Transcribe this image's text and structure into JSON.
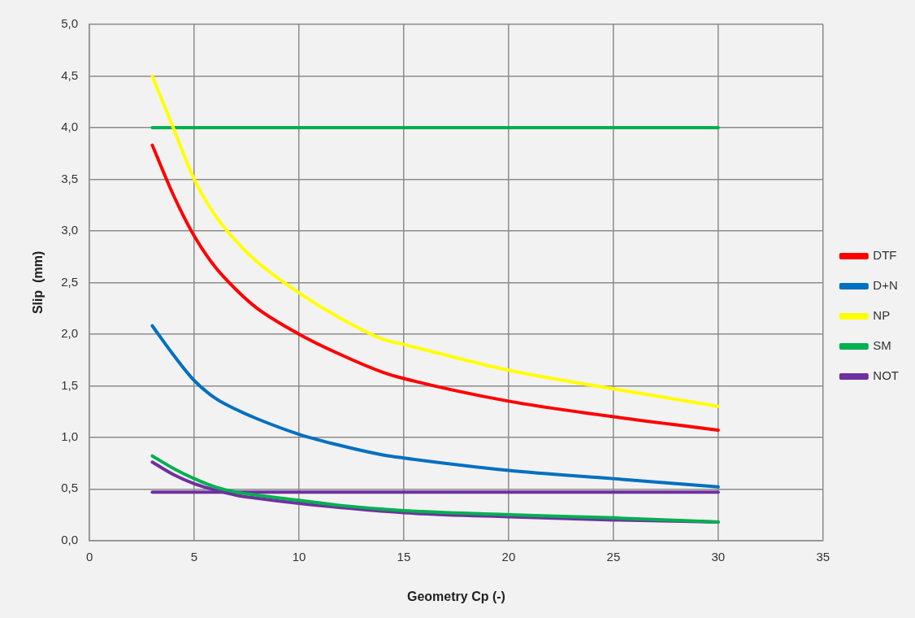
{
  "chart_data": {
    "type": "line",
    "xlabel": "Geometry Cp (-)",
    "ylabel": "Slip  (mm)",
    "xlim": [
      0,
      35
    ],
    "xticks": [
      0,
      5,
      10,
      15,
      20,
      25,
      30,
      35
    ],
    "ylim": [
      0,
      5
    ],
    "yticks": [
      {
        "value": 0,
        "label": "0,0"
      },
      {
        "value": 0.5,
        "label": "0,5"
      },
      {
        "value": 1,
        "label": "1,0"
      },
      {
        "value": 1.5,
        "label": "1,5"
      },
      {
        "value": 2,
        "label": "2,0"
      },
      {
        "value": 2.5,
        "label": "2,5"
      },
      {
        "value": 3,
        "label": "3,0"
      },
      {
        "value": 3.5,
        "label": "3,5"
      },
      {
        "value": 4,
        "label": "4,0"
      },
      {
        "value": 4.5,
        "label": "4,5"
      },
      {
        "value": 5,
        "label": "5,0"
      }
    ],
    "grid": true,
    "legend": "right",
    "marker": "none",
    "line_style": "solid",
    "series": [
      {
        "name": "DTF",
        "color": "#ff0000",
        "x": [
          3,
          4,
          5,
          6,
          7,
          8,
          10,
          12,
          14,
          15,
          20,
          25,
          30
        ],
        "values": [
          3.83,
          3.35,
          2.95,
          2.65,
          2.43,
          2.25,
          2.0,
          1.8,
          1.63,
          1.57,
          1.35,
          1.2,
          1.07
        ]
      },
      {
        "name": "D+N",
        "color": "#0070c0",
        "x": [
          3,
          4,
          5,
          6,
          7,
          8,
          10,
          12,
          14,
          15,
          20,
          25,
          30
        ],
        "values": [
          2.08,
          1.8,
          1.55,
          1.38,
          1.27,
          1.18,
          1.03,
          0.92,
          0.83,
          0.8,
          0.68,
          0.6,
          0.52
        ]
      },
      {
        "name": "NP",
        "color": "#ffff00",
        "x": [
          3,
          4,
          5,
          6,
          7,
          8,
          10,
          12,
          14,
          15,
          20,
          25,
          30
        ],
        "values": [
          4.5,
          4.0,
          3.5,
          3.15,
          2.9,
          2.7,
          2.4,
          2.15,
          1.95,
          1.9,
          1.65,
          1.47,
          1.3
        ]
      },
      {
        "name": "SM",
        "color": "#00b050",
        "x": [
          3,
          4,
          5,
          6,
          7,
          8,
          10,
          12,
          15,
          20,
          25,
          30
        ],
        "values": [
          0.82,
          0.7,
          0.6,
          0.52,
          0.47,
          0.44,
          0.39,
          0.34,
          0.29,
          0.25,
          0.22,
          0.18
        ]
      },
      {
        "name": "NOT",
        "color": "#7030a0",
        "x": [
          3,
          4,
          5,
          6,
          7,
          8,
          10,
          12,
          15,
          20,
          25,
          30
        ],
        "values": [
          0.76,
          0.64,
          0.55,
          0.49,
          0.44,
          0.41,
          0.36,
          0.32,
          0.27,
          0.23,
          0.2,
          0.18
        ]
      },
      {
        "color": "#00b050",
        "x": [
          3,
          30
        ],
        "values": [
          4.0,
          4.0
        ]
      },
      {
        "color": "#7030a0",
        "x": [
          3,
          30
        ],
        "values": [
          0.47,
          0.47
        ]
      }
    ]
  }
}
